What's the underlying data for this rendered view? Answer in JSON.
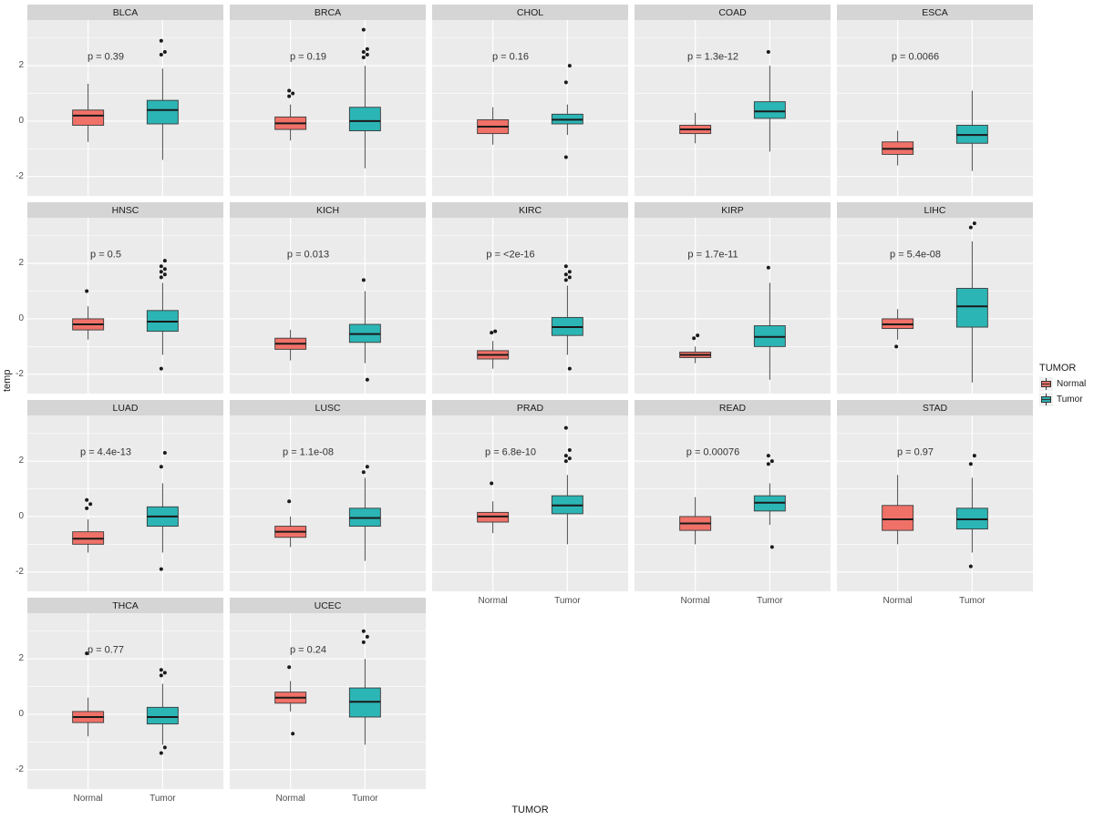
{
  "figure": {
    "y_axis_title": "temp",
    "x_axis_title": "TUMOR",
    "legend": {
      "title": "TUMOR",
      "items": [
        {
          "label": "Normal",
          "color": "#F07168"
        },
        {
          "label": "Tumor",
          "color": "#2CB5B5"
        }
      ]
    },
    "colors": {
      "panel_bg": "#EBEBEB",
      "strip_bg": "#D5D5D5",
      "gridline": "#FFFFFF",
      "box_stroke": "#3A3A3A",
      "outlier": "#1A1A1A",
      "p_text": "#333333"
    }
  },
  "chart_data": {
    "type": "boxplot-facets",
    "x_categories": [
      "Normal",
      "Tumor"
    ],
    "ylim": [
      -2.7,
      3.65
    ],
    "y_major_gridlines": [
      -2,
      0,
      2
    ],
    "y_minor_gridlines": [
      -1,
      1,
      3
    ],
    "y_tick_labels": [
      "-2",
      "0",
      "2"
    ],
    "y_tick_values": [
      -2,
      0,
      2
    ],
    "facets": [
      {
        "name": "BLCA",
        "p": "p = 0.39",
        "y_axis": true,
        "x_axis": false,
        "normal": {
          "lo": -0.75,
          "q1": -0.15,
          "med": 0.2,
          "q3": 0.4,
          "hi": 1.35,
          "out": []
        },
        "tumor": {
          "lo": -1.4,
          "q1": -0.1,
          "med": 0.4,
          "q3": 0.75,
          "hi": 1.9,
          "out": [
            2.4,
            2.5,
            2.9
          ]
        }
      },
      {
        "name": "BRCA",
        "p": "p = 0.19",
        "y_axis": false,
        "x_axis": false,
        "normal": {
          "lo": -0.7,
          "q1": -0.3,
          "med": -0.08,
          "q3": 0.15,
          "hi": 0.6,
          "out": [
            0.9,
            1.0,
            1.1
          ]
        },
        "tumor": {
          "lo": -1.7,
          "q1": -0.35,
          "med": 0.0,
          "q3": 0.5,
          "hi": 2.0,
          "out": [
            2.3,
            2.4,
            2.5,
            2.6,
            3.3
          ]
        }
      },
      {
        "name": "CHOL",
        "p": "p = 0.16",
        "y_axis": false,
        "x_axis": false,
        "normal": {
          "lo": -0.85,
          "q1": -0.45,
          "med": -0.2,
          "q3": 0.05,
          "hi": 0.5,
          "out": []
        },
        "tumor": {
          "lo": -0.5,
          "q1": -0.1,
          "med": 0.05,
          "q3": 0.25,
          "hi": 0.6,
          "out": [
            1.4,
            2.0,
            -1.3
          ]
        }
      },
      {
        "name": "COAD",
        "p": "p = 1.3e-12",
        "y_axis": false,
        "x_axis": false,
        "normal": {
          "lo": -0.8,
          "q1": -0.45,
          "med": -0.3,
          "q3": -0.15,
          "hi": 0.3,
          "out": []
        },
        "tumor": {
          "lo": -1.1,
          "q1": 0.1,
          "med": 0.35,
          "q3": 0.7,
          "hi": 2.0,
          "out": [
            2.5
          ]
        }
      },
      {
        "name": "ESCA",
        "p": "p = 0.0066",
        "y_axis": false,
        "x_axis": false,
        "normal": {
          "lo": -1.6,
          "q1": -1.2,
          "med": -1.0,
          "q3": -0.75,
          "hi": -0.35,
          "out": []
        },
        "tumor": {
          "lo": -1.8,
          "q1": -0.8,
          "med": -0.5,
          "q3": -0.15,
          "hi": 1.1,
          "out": []
        }
      },
      {
        "name": "HNSC",
        "p": "p = 0.5",
        "y_axis": true,
        "x_axis": false,
        "normal": {
          "lo": -0.75,
          "q1": -0.4,
          "med": -0.2,
          "q3": 0.0,
          "hi": 0.45,
          "out": [
            1.0
          ]
        },
        "tumor": {
          "lo": -1.3,
          "q1": -0.45,
          "med": -0.1,
          "q3": 0.3,
          "hi": 1.3,
          "out": [
            1.5,
            1.6,
            1.7,
            1.8,
            1.9,
            2.1,
            -1.8
          ]
        }
      },
      {
        "name": "KICH",
        "p": "p = 0.013",
        "y_axis": false,
        "x_axis": false,
        "normal": {
          "lo": -1.5,
          "q1": -1.1,
          "med": -0.9,
          "q3": -0.7,
          "hi": -0.4,
          "out": []
        },
        "tumor": {
          "lo": -1.6,
          "q1": -0.85,
          "med": -0.55,
          "q3": -0.2,
          "hi": 1.0,
          "out": [
            1.4,
            -2.2
          ]
        }
      },
      {
        "name": "KIRC",
        "p": "p = <2e-16",
        "y_axis": false,
        "x_axis": false,
        "normal": {
          "lo": -1.8,
          "q1": -1.45,
          "med": -1.3,
          "q3": -1.15,
          "hi": -0.8,
          "out": [
            -0.5,
            -0.45
          ]
        },
        "tumor": {
          "lo": -1.3,
          "q1": -0.6,
          "med": -0.3,
          "q3": 0.05,
          "hi": 1.2,
          "out": [
            1.4,
            1.5,
            1.6,
            1.7,
            1.9,
            -1.8
          ]
        }
      },
      {
        "name": "KIRP",
        "p": "p = 1.7e-11",
        "y_axis": false,
        "x_axis": false,
        "normal": {
          "lo": -1.6,
          "q1": -1.4,
          "med": -1.3,
          "q3": -1.2,
          "hi": -1.0,
          "out": [
            -0.7,
            -0.6
          ]
        },
        "tumor": {
          "lo": -2.2,
          "q1": -1.0,
          "med": -0.65,
          "q3": -0.25,
          "hi": 1.3,
          "out": [
            1.85
          ]
        }
      },
      {
        "name": "LIHC",
        "p": "p = 5.4e-08",
        "y_axis": false,
        "x_axis": false,
        "normal": {
          "lo": -0.75,
          "q1": -0.35,
          "med": -0.2,
          "q3": 0.0,
          "hi": 0.35,
          "out": [
            -1.0
          ]
        },
        "tumor": {
          "lo": -2.3,
          "q1": -0.3,
          "med": 0.45,
          "q3": 1.1,
          "hi": 2.8,
          "out": [
            3.3,
            3.45
          ]
        }
      },
      {
        "name": "LUAD",
        "p": "p = 4.4e-13",
        "y_axis": true,
        "x_axis": false,
        "normal": {
          "lo": -1.3,
          "q1": -1.0,
          "med": -0.8,
          "q3": -0.55,
          "hi": -0.1,
          "out": [
            0.3,
            0.45,
            0.6
          ]
        },
        "tumor": {
          "lo": -1.3,
          "q1": -0.35,
          "med": 0.0,
          "q3": 0.35,
          "hi": 1.2,
          "out": [
            1.8,
            2.3,
            -1.9
          ]
        }
      },
      {
        "name": "LUSC",
        "p": "p = 1.1e-08",
        "y_axis": false,
        "x_axis": false,
        "normal": {
          "lo": -1.1,
          "q1": -0.75,
          "med": -0.55,
          "q3": -0.35,
          "hi": 0.0,
          "out": [
            0.55
          ]
        },
        "tumor": {
          "lo": -1.6,
          "q1": -0.35,
          "med": -0.05,
          "q3": 0.3,
          "hi": 1.4,
          "out": [
            1.6,
            1.8
          ]
        }
      },
      {
        "name": "PRAD",
        "p": "p = 6.8e-10",
        "y_axis": false,
        "x_axis": true,
        "normal": {
          "lo": -0.6,
          "q1": -0.2,
          "med": 0.0,
          "q3": 0.15,
          "hi": 0.55,
          "out": [
            1.2
          ]
        },
        "tumor": {
          "lo": -1.0,
          "q1": 0.1,
          "med": 0.4,
          "q3": 0.75,
          "hi": 1.5,
          "out": [
            2.0,
            2.1,
            2.2,
            2.4,
            3.2
          ]
        }
      },
      {
        "name": "READ",
        "p": "p = 0.00076",
        "y_axis": false,
        "x_axis": true,
        "normal": {
          "lo": -1.0,
          "q1": -0.5,
          "med": -0.25,
          "q3": 0.0,
          "hi": 0.7,
          "out": []
        },
        "tumor": {
          "lo": -0.3,
          "q1": 0.2,
          "med": 0.5,
          "q3": 0.75,
          "hi": 1.2,
          "out": [
            1.9,
            2.0,
            2.2,
            -1.1
          ]
        }
      },
      {
        "name": "STAD",
        "p": "p = 0.97",
        "y_axis": false,
        "x_axis": true,
        "normal": {
          "lo": -1.0,
          "q1": -0.5,
          "med": -0.1,
          "q3": 0.4,
          "hi": 1.5,
          "out": []
        },
        "tumor": {
          "lo": -1.3,
          "q1": -0.45,
          "med": -0.1,
          "q3": 0.3,
          "hi": 1.4,
          "out": [
            1.9,
            2.2,
            -1.8
          ]
        }
      },
      {
        "name": "THCA",
        "p": "p = 0.77",
        "y_axis": true,
        "x_axis": true,
        "normal": {
          "lo": -0.8,
          "q1": -0.3,
          "med": -0.1,
          "q3": 0.1,
          "hi": 0.6,
          "out": [
            2.2
          ]
        },
        "tumor": {
          "lo": -1.1,
          "q1": -0.35,
          "med": -0.1,
          "q3": 0.25,
          "hi": 1.1,
          "out": [
            1.4,
            1.5,
            1.6,
            -1.2,
            -1.4
          ]
        }
      },
      {
        "name": "UCEC",
        "p": "p = 0.24",
        "y_axis": false,
        "x_axis": true,
        "normal": {
          "lo": 0.1,
          "q1": 0.4,
          "med": 0.6,
          "q3": 0.8,
          "hi": 1.2,
          "out": [
            1.7,
            -0.7
          ]
        },
        "tumor": {
          "lo": -1.1,
          "q1": -0.1,
          "med": 0.45,
          "q3": 0.95,
          "hi": 2.0,
          "out": [
            2.6,
            2.8,
            3.0
          ]
        }
      }
    ],
    "p_label_y_value": 2.35
  }
}
